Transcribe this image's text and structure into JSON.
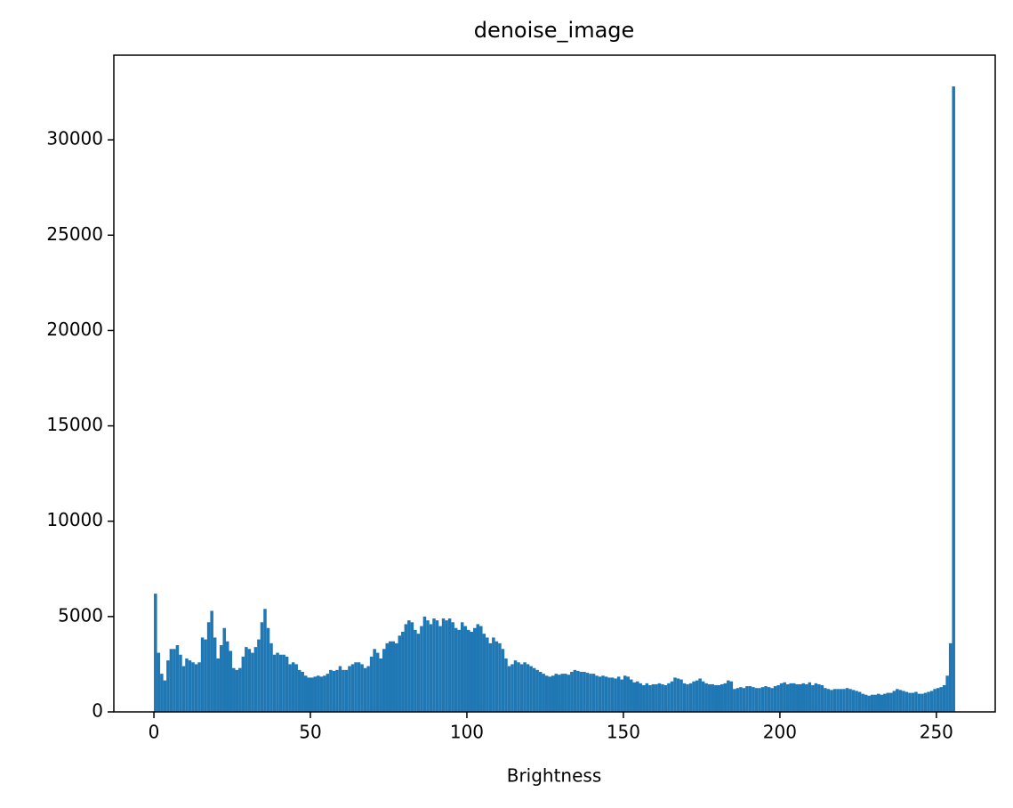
{
  "chart_data": {
    "type": "histogram",
    "title": "denoise_image",
    "xlabel": "Brightness",
    "color": "#1f77b4",
    "bins": [
      0,
      1,
      2,
      3,
      4,
      5,
      6,
      7,
      8,
      9,
      10,
      11,
      12,
      13,
      14,
      15,
      16,
      17,
      18,
      19,
      20,
      21,
      22,
      23,
      24,
      25,
      26,
      27,
      28,
      29,
      30,
      31,
      32,
      33,
      34,
      35,
      36,
      37,
      38,
      39,
      40,
      41,
      42,
      43,
      44,
      45,
      46,
      47,
      48,
      49,
      50,
      51,
      52,
      53,
      54,
      55,
      56,
      57,
      58,
      59,
      60,
      61,
      62,
      63,
      64,
      65,
      66,
      67,
      68,
      69,
      70,
      71,
      72,
      73,
      74,
      75,
      76,
      77,
      78,
      79,
      80,
      81,
      82,
      83,
      84,
      85,
      86,
      87,
      88,
      89,
      90,
      91,
      92,
      93,
      94,
      95,
      96,
      97,
      98,
      99,
      100,
      101,
      102,
      103,
      104,
      105,
      106,
      107,
      108,
      109,
      110,
      111,
      112,
      113,
      114,
      115,
      116,
      117,
      118,
      119,
      120,
      121,
      122,
      123,
      124,
      125,
      126,
      127,
      128,
      129,
      130,
      131,
      132,
      133,
      134,
      135,
      136,
      137,
      138,
      139,
      140,
      141,
      142,
      143,
      144,
      145,
      146,
      147,
      148,
      149,
      150,
      151,
      152,
      153,
      154,
      155,
      156,
      157,
      158,
      159,
      160,
      161,
      162,
      163,
      164,
      165,
      166,
      167,
      168,
      169,
      170,
      171,
      172,
      173,
      174,
      175,
      176,
      177,
      178,
      179,
      180,
      181,
      182,
      183,
      184,
      185,
      186,
      187,
      188,
      189,
      190,
      191,
      192,
      193,
      194,
      195,
      196,
      197,
      198,
      199,
      200,
      201,
      202,
      203,
      204,
      205,
      206,
      207,
      208,
      209,
      210,
      211,
      212,
      213,
      214,
      215,
      216,
      217,
      218,
      219,
      220,
      221,
      222,
      223,
      224,
      225,
      226,
      227,
      228,
      229,
      230,
      231,
      232,
      233,
      234,
      235,
      236,
      237,
      238,
      239,
      240,
      241,
      242,
      243,
      244,
      245,
      246,
      247,
      248,
      249,
      250,
      251,
      252,
      253,
      254,
      255,
      256
    ],
    "values": [
      6200,
      3100,
      2000,
      1650,
      2700,
      3300,
      3300,
      3500,
      3000,
      2400,
      2800,
      2700,
      2600,
      2500,
      2600,
      3900,
      3800,
      4700,
      5300,
      3900,
      2800,
      3500,
      4400,
      3700,
      3200,
      2300,
      2200,
      2300,
      2900,
      3400,
      3300,
      3100,
      3400,
      3800,
      4700,
      5400,
      4400,
      3600,
      3000,
      3100,
      3000,
      3000,
      2900,
      2500,
      2600,
      2500,
      2200,
      2100,
      1900,
      1800,
      1800,
      1850,
      1900,
      1850,
      1900,
      2000,
      2200,
      2150,
      2200,
      2400,
      2200,
      2200,
      2400,
      2500,
      2600,
      2600,
      2500,
      2300,
      2400,
      2900,
      3300,
      3100,
      2800,
      3300,
      3600,
      3700,
      3700,
      3600,
      4000,
      4200,
      4600,
      4800,
      4700,
      4300,
      4100,
      4500,
      5000,
      4800,
      4600,
      4900,
      4800,
      4500,
      4900,
      4800,
      4900,
      4700,
      4400,
      4300,
      4700,
      4500,
      4300,
      4200,
      4400,
      4600,
      4500,
      4100,
      3900,
      3600,
      3900,
      3700,
      3600,
      3300,
      2800,
      2400,
      2500,
      2700,
      2600,
      2500,
      2600,
      2500,
      2400,
      2300,
      2200,
      2100,
      2000,
      1900,
      1850,
      1900,
      2000,
      1950,
      2000,
      2000,
      1950,
      2100,
      2200,
      2150,
      2100,
      2100,
      2050,
      2000,
      2000,
      1900,
      1850,
      1900,
      1850,
      1800,
      1800,
      1750,
      1850,
      1700,
      1900,
      1850,
      1700,
      1550,
      1600,
      1500,
      1400,
      1500,
      1400,
      1450,
      1450,
      1500,
      1450,
      1400,
      1500,
      1600,
      1800,
      1750,
      1700,
      1500,
      1450,
      1500,
      1600,
      1650,
      1750,
      1600,
      1500,
      1450,
      1450,
      1400,
      1400,
      1450,
      1500,
      1650,
      1600,
      1200,
      1250,
      1300,
      1250,
      1350,
      1350,
      1300,
      1250,
      1250,
      1300,
      1350,
      1300,
      1250,
      1350,
      1400,
      1500,
      1550,
      1450,
      1500,
      1500,
      1450,
      1450,
      1500,
      1450,
      1550,
      1400,
      1500,
      1450,
      1400,
      1250,
      1200,
      1150,
      1200,
      1200,
      1200,
      1200,
      1250,
      1200,
      1150,
      1100,
      1050,
      950,
      900,
      850,
      900,
      900,
      950,
      900,
      950,
      1000,
      1000,
      1100,
      1200,
      1150,
      1100,
      1050,
      1000,
      1000,
      1050,
      950,
      950,
      1000,
      1050,
      1100,
      1200,
      1250,
      1300,
      1400,
      1900,
      3600,
      32800
    ],
    "xlim": [
      -12.8,
      268.8
    ],
    "ylim": [
      0,
      34440
    ],
    "xticks": [
      0,
      50,
      100,
      150,
      200,
      250
    ],
    "yticks": [
      0,
      5000,
      10000,
      15000,
      20000,
      25000,
      30000
    ]
  }
}
